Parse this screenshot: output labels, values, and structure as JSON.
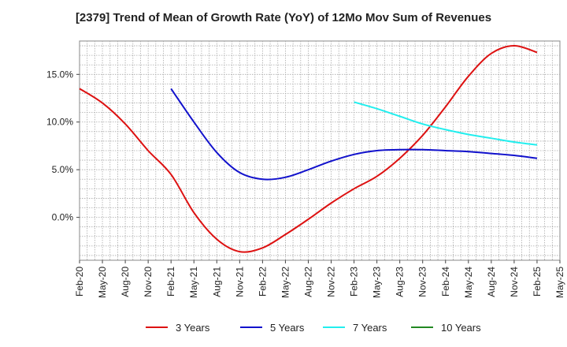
{
  "chart_data": {
    "type": "line",
    "title": "[2379]  Trend of Mean of Growth Rate (YoY) of 12Mo Mov Sum of Revenues",
    "xlabel": "",
    "ylabel": "",
    "ylim": [
      -4.5,
      18.5
    ],
    "yticks": [
      0,
      5,
      10,
      15
    ],
    "ytick_labels": [
      "0.0%",
      "5.0%",
      "10.0%",
      "15.0%"
    ],
    "x_start": "Feb-20",
    "x_end": "May-25",
    "xtick_labels": [
      "Feb-20",
      "May-20",
      "Aug-20",
      "Nov-20",
      "Feb-21",
      "May-21",
      "Aug-21",
      "Nov-21",
      "Feb-22",
      "May-22",
      "Aug-22",
      "Nov-22",
      "Feb-23",
      "May-23",
      "Aug-23",
      "Nov-23",
      "Feb-24",
      "May-24",
      "Aug-24",
      "Nov-24",
      "Feb-25",
      "May-25"
    ],
    "grid": true,
    "legend_position": "bottom",
    "series": [
      {
        "name": "3 Years",
        "color": "#dd1111",
        "points": [
          [
            0,
            13.5
          ],
          [
            3,
            12.0
          ],
          [
            6,
            9.8
          ],
          [
            9,
            7.0
          ],
          [
            12,
            4.5
          ],
          [
            15,
            0.5
          ],
          [
            18,
            -2.3
          ],
          [
            21,
            -3.6
          ],
          [
            24,
            -3.2
          ],
          [
            27,
            -1.8
          ],
          [
            30,
            -0.2
          ],
          [
            33,
            1.5
          ],
          [
            36,
            3.0
          ],
          [
            39,
            4.3
          ],
          [
            42,
            6.2
          ],
          [
            45,
            8.6
          ],
          [
            48,
            11.6
          ],
          [
            51,
            14.8
          ],
          [
            54,
            17.2
          ],
          [
            57,
            18.0
          ],
          [
            60,
            17.3
          ]
        ]
      },
      {
        "name": "5 Years",
        "color": "#1111cc",
        "points": [
          [
            12,
            13.5
          ],
          [
            15,
            10.0
          ],
          [
            18,
            6.8
          ],
          [
            21,
            4.7
          ],
          [
            24,
            4.0
          ],
          [
            27,
            4.2
          ],
          [
            30,
            5.0
          ],
          [
            33,
            5.9
          ],
          [
            36,
            6.6
          ],
          [
            39,
            7.0
          ],
          [
            42,
            7.1
          ],
          [
            45,
            7.1
          ],
          [
            48,
            7.0
          ],
          [
            51,
            6.9
          ],
          [
            54,
            6.7
          ],
          [
            57,
            6.5
          ],
          [
            60,
            6.2
          ]
        ]
      },
      {
        "name": "7 Years",
        "color": "#22eeee",
        "points": [
          [
            36,
            12.1
          ],
          [
            39,
            11.4
          ],
          [
            42,
            10.6
          ],
          [
            45,
            9.8
          ],
          [
            48,
            9.2
          ],
          [
            51,
            8.7
          ],
          [
            54,
            8.3
          ],
          [
            57,
            7.9
          ],
          [
            60,
            7.6
          ]
        ]
      },
      {
        "name": "10 Years",
        "color": "#228822",
        "points": []
      }
    ]
  }
}
